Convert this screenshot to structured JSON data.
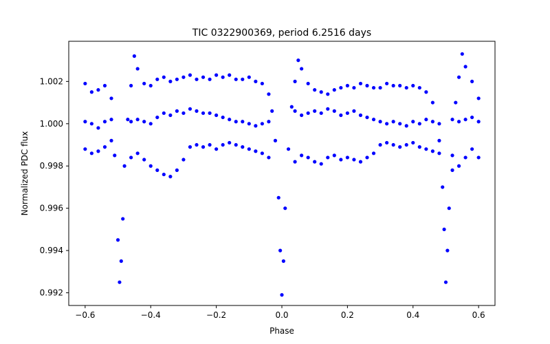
{
  "chart_data": {
    "type": "scatter",
    "title": "TIC 0322900369, period 6.2516 days",
    "xlabel": "Phase",
    "ylabel": "Normalized PDC flux",
    "xlim": [
      -0.65,
      0.65
    ],
    "ylim": [
      0.9914,
      1.0039
    ],
    "xticks": [
      {
        "value": -0.6,
        "label": "−0.6"
      },
      {
        "value": -0.4,
        "label": "−0.4"
      },
      {
        "value": -0.2,
        "label": "−0.2"
      },
      {
        "value": 0.0,
        "label": "0.0"
      },
      {
        "value": 0.2,
        "label": "0.2"
      },
      {
        "value": 0.4,
        "label": "0.4"
      },
      {
        "value": 0.6,
        "label": "0.6"
      }
    ],
    "yticks": [
      {
        "value": 0.992,
        "label": "0.992"
      },
      {
        "value": 0.994,
        "label": "0.994"
      },
      {
        "value": 0.996,
        "label": "0.996"
      },
      {
        "value": 0.998,
        "label": "0.998"
      },
      {
        "value": 1.0,
        "label": "1.000"
      },
      {
        "value": 1.002,
        "label": "1.002"
      }
    ],
    "grid": false,
    "marker_color": "#0000ff",
    "series": [
      {
        "x": [
          -0.6,
          -0.58,
          -0.56,
          -0.54,
          -0.52,
          -0.51,
          -0.5,
          -0.495,
          -0.49,
          -0.485,
          -0.48,
          -0.47,
          -0.46,
          -0.45,
          -0.44,
          -0.42,
          -0.4,
          -0.38,
          -0.36,
          -0.34,
          -0.32,
          -0.3,
          -0.28,
          -0.26,
          -0.24,
          -0.22,
          -0.2,
          -0.18,
          -0.16,
          -0.14,
          -0.12,
          -0.1,
          -0.08,
          -0.06,
          -0.04,
          -0.03,
          -0.02,
          -0.01,
          -0.005,
          0.0,
          0.005,
          0.01,
          0.02,
          0.03,
          0.04,
          0.05,
          0.06,
          0.08,
          0.1,
          0.12,
          0.14,
          0.16,
          0.18,
          0.2,
          0.22,
          0.24,
          0.26,
          0.28,
          0.3,
          0.32,
          0.34,
          0.36,
          0.38,
          0.4,
          0.42,
          0.44,
          0.46,
          0.48,
          0.49,
          0.495,
          0.5,
          0.505,
          0.51,
          0.52,
          0.53,
          0.54,
          0.55,
          0.56,
          0.58,
          0.6
        ],
        "y": [
          1.0019,
          1.0015,
          1.0016,
          1.0018,
          1.0012,
          0.9985,
          0.9945,
          0.9925,
          0.9935,
          0.9955,
          0.998,
          1.0002,
          1.0018,
          1.0032,
          1.0026,
          1.0019,
          1.0018,
          1.0021,
          1.0022,
          1.002,
          1.0021,
          1.0022,
          1.0023,
          1.0021,
          1.0022,
          1.0021,
          1.0023,
          1.0022,
          1.0023,
          1.0021,
          1.0021,
          1.0022,
          1.002,
          1.0019,
          1.0014,
          1.0006,
          0.9992,
          0.9965,
          0.994,
          0.9919,
          0.9935,
          0.996,
          0.9988,
          1.0008,
          1.002,
          1.003,
          1.0026,
          1.0019,
          1.0016,
          1.0015,
          1.0014,
          1.0016,
          1.0017,
          1.0018,
          1.0017,
          1.0019,
          1.0018,
          1.0017,
          1.0017,
          1.0019,
          1.0018,
          1.0018,
          1.0017,
          1.0018,
          1.0017,
          1.0015,
          1.001,
          0.9992,
          0.997,
          0.995,
          0.9925,
          0.994,
          0.996,
          0.9985,
          1.001,
          1.0022,
          1.0033,
          1.0027,
          1.002,
          1.0012
        ]
      },
      {
        "x": [
          -0.6,
          -0.58,
          -0.56,
          -0.54,
          -0.52,
          -0.46,
          -0.44,
          -0.42,
          -0.4,
          -0.38,
          -0.36,
          -0.34,
          -0.32,
          -0.3,
          -0.28,
          -0.26,
          -0.24,
          -0.22,
          -0.2,
          -0.18,
          -0.16,
          -0.14,
          -0.12,
          -0.1,
          -0.08,
          -0.06,
          -0.04,
          0.04,
          0.06,
          0.08,
          0.1,
          0.12,
          0.14,
          0.16,
          0.18,
          0.2,
          0.22,
          0.24,
          0.26,
          0.28,
          0.3,
          0.32,
          0.34,
          0.36,
          0.38,
          0.4,
          0.42,
          0.44,
          0.46,
          0.48,
          0.52,
          0.54,
          0.56,
          0.58,
          0.6
        ],
        "y": [
          1.0001,
          1.0,
          0.9998,
          1.0001,
          1.0002,
          1.0001,
          1.0002,
          1.0001,
          1.0,
          1.0003,
          1.0005,
          1.0004,
          1.0006,
          1.0005,
          1.0007,
          1.0006,
          1.0005,
          1.0005,
          1.0004,
          1.0003,
          1.0002,
          1.0001,
          1.0001,
          1.0,
          0.9999,
          1.0,
          1.0001,
          1.0006,
          1.0004,
          1.0005,
          1.0006,
          1.0005,
          1.0007,
          1.0006,
          1.0004,
          1.0005,
          1.0006,
          1.0004,
          1.0003,
          1.0002,
          1.0001,
          1.0,
          1.0001,
          1.0,
          0.9999,
          1.0001,
          1.0,
          1.0002,
          1.0001,
          1.0,
          1.0002,
          1.0001,
          1.0002,
          1.0003,
          1.0001
        ]
      },
      {
        "x": [
          -0.6,
          -0.58,
          -0.56,
          -0.54,
          -0.52,
          -0.46,
          -0.44,
          -0.42,
          -0.4,
          -0.38,
          -0.36,
          -0.34,
          -0.32,
          -0.3,
          -0.28,
          -0.26,
          -0.24,
          -0.22,
          -0.2,
          -0.18,
          -0.16,
          -0.14,
          -0.12,
          -0.1,
          -0.08,
          -0.06,
          -0.04,
          0.04,
          0.06,
          0.08,
          0.1,
          0.12,
          0.14,
          0.16,
          0.18,
          0.2,
          0.22,
          0.24,
          0.26,
          0.28,
          0.3,
          0.32,
          0.34,
          0.36,
          0.38,
          0.4,
          0.42,
          0.44,
          0.46,
          0.48,
          0.52,
          0.54,
          0.56,
          0.58,
          0.6
        ],
        "y": [
          0.9988,
          0.9986,
          0.9987,
          0.9989,
          0.9992,
          0.9984,
          0.9986,
          0.9983,
          0.998,
          0.9978,
          0.9976,
          0.9975,
          0.9978,
          0.9983,
          0.9989,
          0.999,
          0.9989,
          0.999,
          0.9988,
          0.999,
          0.9991,
          0.999,
          0.9989,
          0.9988,
          0.9987,
          0.9986,
          0.9984,
          0.9982,
          0.9985,
          0.9984,
          0.9982,
          0.9981,
          0.9984,
          0.9985,
          0.9983,
          0.9984,
          0.9983,
          0.9982,
          0.9984,
          0.9986,
          0.999,
          0.9991,
          0.999,
          0.9989,
          0.999,
          0.9991,
          0.9989,
          0.9988,
          0.9987,
          0.9986,
          0.9978,
          0.998,
          0.9984,
          0.9988,
          0.9984
        ]
      }
    ]
  }
}
